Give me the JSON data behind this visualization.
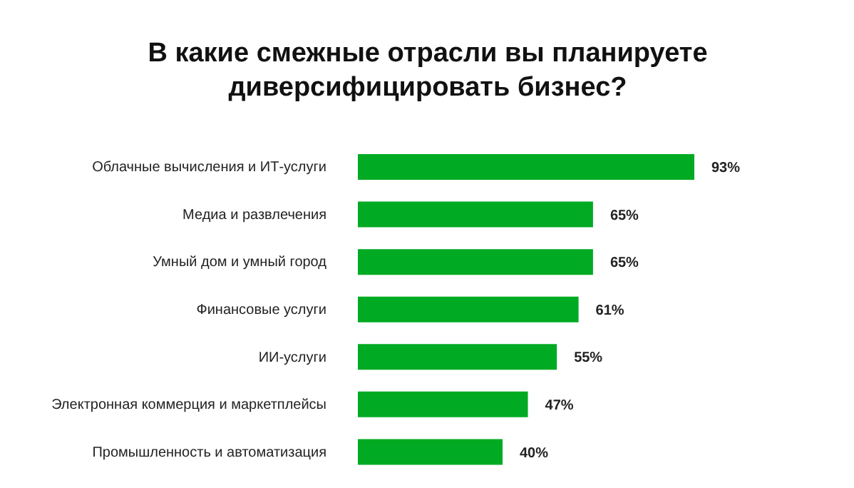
{
  "chart_data": {
    "type": "bar",
    "orientation": "horizontal",
    "title": "В какие смежные отрасли вы планируете диверсифицировать бизнес?",
    "categories": [
      "Облачные вычисления и ИТ-услуги",
      "Медиа и развлечения",
      "Умный дом и умный город",
      "Финансовые услуги",
      "ИИ-услуги",
      "Электронная коммерция и маркетплейсы",
      "Промышленность и автоматизация"
    ],
    "values": [
      93,
      65,
      65,
      61,
      55,
      47,
      40
    ],
    "value_labels": [
      "93%",
      "65%",
      "65%",
      "61%",
      "55%",
      "47%",
      "40%"
    ],
    "color": "#00aa22",
    "xlim": [
      0,
      93
    ],
    "tick_labels": "y",
    "legend": false
  }
}
